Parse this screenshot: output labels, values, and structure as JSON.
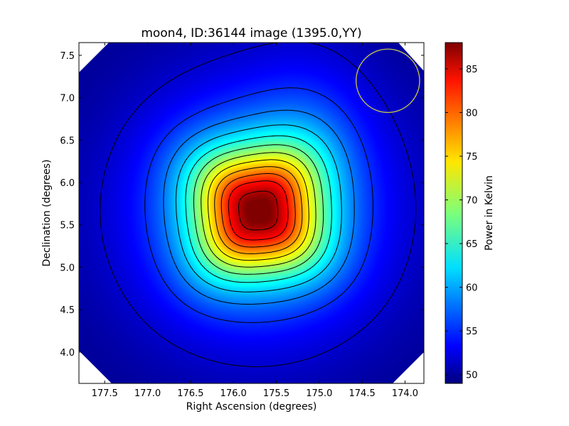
{
  "chart_data": {
    "type": "heatmap",
    "title": "moon4, ID:36144 image (1395.0,YY)",
    "xlabel": "Right Ascension (degrees)",
    "ylabel": "Declination (degrees)",
    "colorbar_label": "Power in Kelvin",
    "xlim": [
      177.8,
      173.78
    ],
    "ylim": [
      3.63,
      7.65
    ],
    "x_ticks": [
      177.5,
      177.0,
      176.5,
      176.0,
      175.5,
      175.0,
      174.5,
      174.0
    ],
    "x_tick_labels": [
      "177.5",
      "177.0",
      "176.5",
      "176.0",
      "175.5",
      "175.0",
      "174.5",
      "174.0"
    ],
    "y_ticks": [
      4.0,
      4.5,
      5.0,
      5.5,
      6.0,
      6.5,
      7.0,
      7.5
    ],
    "y_tick_labels": [
      "4.0",
      "4.5",
      "5.0",
      "5.5",
      "6.0",
      "6.5",
      "7.0",
      "7.5"
    ],
    "colorbar_range": [
      49,
      88
    ],
    "colorbar_ticks": [
      50,
      55,
      60,
      65,
      70,
      75,
      80,
      85
    ],
    "colorbar_tick_labels": [
      "50",
      "55",
      "60",
      "65",
      "70",
      "75",
      "80",
      "85"
    ],
    "colormap": "jet",
    "peak": {
      "ra": 175.72,
      "dec": 5.66,
      "value": 88
    },
    "background_level": 49.5,
    "contour_levels": [
      52,
      55.5,
      58.5,
      61.5,
      64.5,
      67.5,
      70.5,
      73.5,
      76.5,
      79.5,
      82.5,
      86
    ],
    "beam_circle": {
      "ra": 174.2,
      "dec": 7.2,
      "radius_deg": 0.37,
      "color": "#c8c84a"
    },
    "grid": false,
    "legend": "none"
  }
}
